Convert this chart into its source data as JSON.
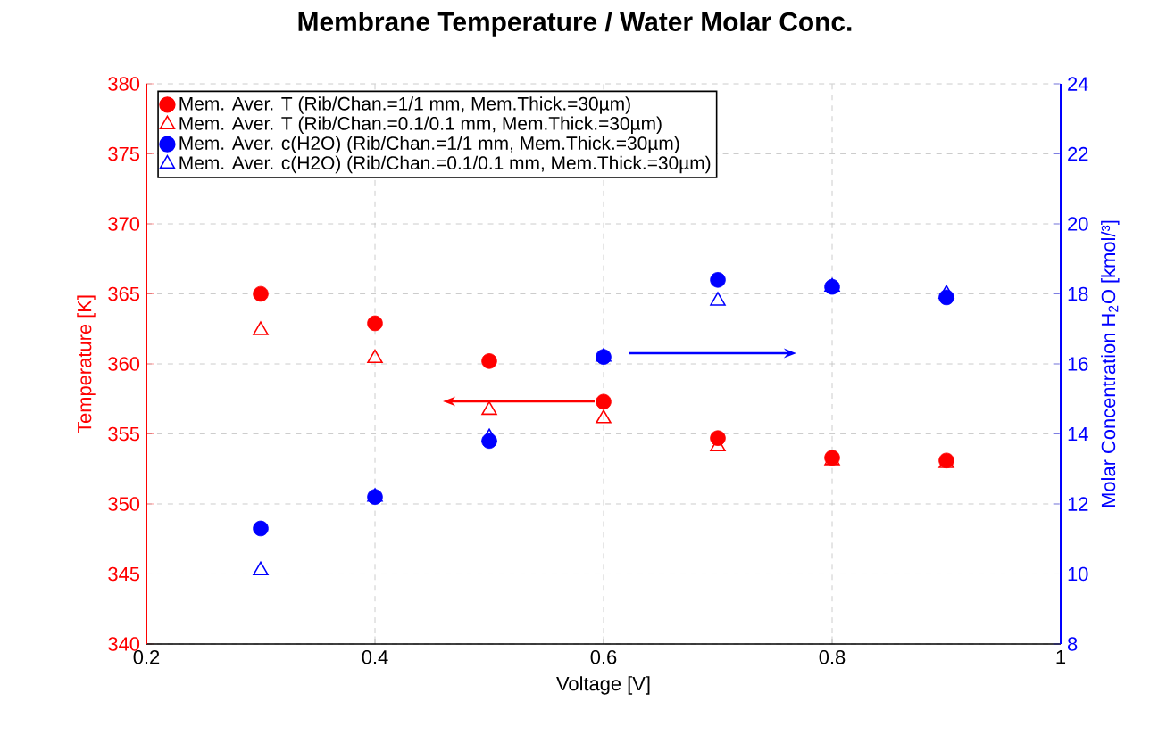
{
  "chart_data": {
    "type": "scatter",
    "title": "Membrane Temperature / Water Molar Conc.",
    "xlabel": "Voltage [V]",
    "ylabel": "Temperature [K]",
    "y2label": "Molar Concentration H$_{2}$O [kmol/³]",
    "x": [
      0.3,
      0.4,
      0.5,
      0.6,
      0.7,
      0.8,
      0.9
    ],
    "series": [
      {
        "name": "Mem. Aver. T (Rib/Chan.=1/1 mm, Mem.Thick.=30µm)",
        "color": "#ff0000",
        "marker": "circle",
        "values": [
          365.0,
          362.9,
          360.2,
          357.3,
          354.7,
          353.3,
          353.1
        ]
      },
      {
        "name": "Mem. Aver. T (Rib/Chan.=0.1/0.1 mm, Mem.Thick.=30µm)",
        "color": "#ff0000",
        "marker": "triangle",
        "values": [
          362.4,
          360.4,
          356.7,
          356.1,
          354.1,
          353.1,
          352.9
        ]
      },
      {
        "name": "Mem. Aver. c(H2O) (Rib/Chan.=1/1 mm, Mem.Thick.=30µm)",
        "color": "#0000ff",
        "marker": "circle",
        "axis": "y2",
        "values": [
          11.3,
          12.2,
          13.8,
          16.2,
          18.4,
          18.2,
          17.9
        ]
      },
      {
        "name": "Mem. Aver. c(H2O) (Rib/Chan.=0.1/0.1 mm, Mem.Thick.=30µm)",
        "color": "#0000ff",
        "marker": "triangle",
        "axis": "y2",
        "values": [
          10.1,
          12.2,
          13.9,
          16.2,
          17.8,
          18.2,
          18.0
        ]
      }
    ],
    "xlim": [
      0.2,
      1
    ],
    "xticks": [
      0.2,
      0.4,
      0.6,
      0.8,
      1
    ],
    "ylim": [
      340,
      380
    ],
    "yticks": [
      340,
      345,
      350,
      355,
      360,
      365,
      370,
      375,
      380
    ],
    "y2lim": [
      8,
      24
    ],
    "y2ticks": [
      8,
      10,
      12,
      14,
      16,
      18,
      20,
      22,
      24
    ],
    "grid": true,
    "legend": "top left"
  }
}
